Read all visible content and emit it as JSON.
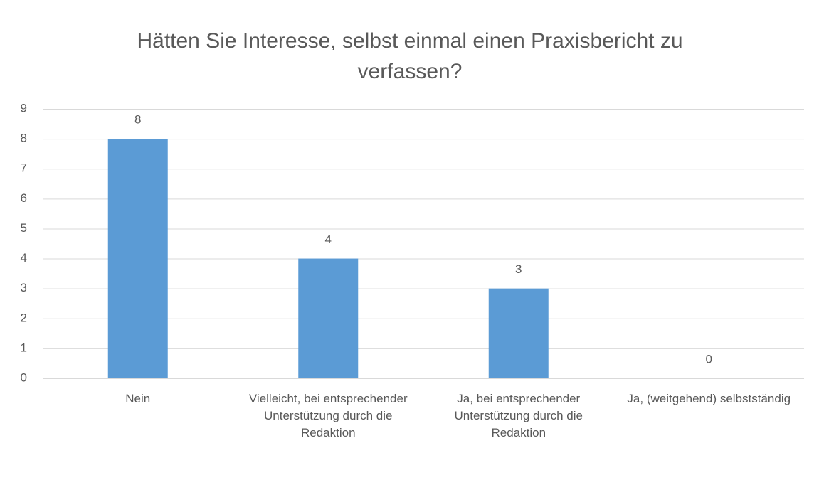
{
  "chart_data": {
    "type": "bar",
    "title": "Hätten Sie Interesse, selbst einmal einen Praxisbericht zu verfassen?",
    "categories": [
      "Nein",
      "Vielleicht, bei entsprechender Unterstützung durch die Redaktion",
      "Ja, bei entsprechender Unterstützung durch die Redaktion",
      "Ja, (weitgehend) selbstständig"
    ],
    "values": [
      8,
      4,
      3,
      0
    ],
    "color": "#5b9bd5",
    "ylim": [
      0,
      9
    ],
    "yticks": [
      0,
      1,
      2,
      3,
      4,
      5,
      6,
      7,
      8,
      9
    ],
    "grid": true
  }
}
